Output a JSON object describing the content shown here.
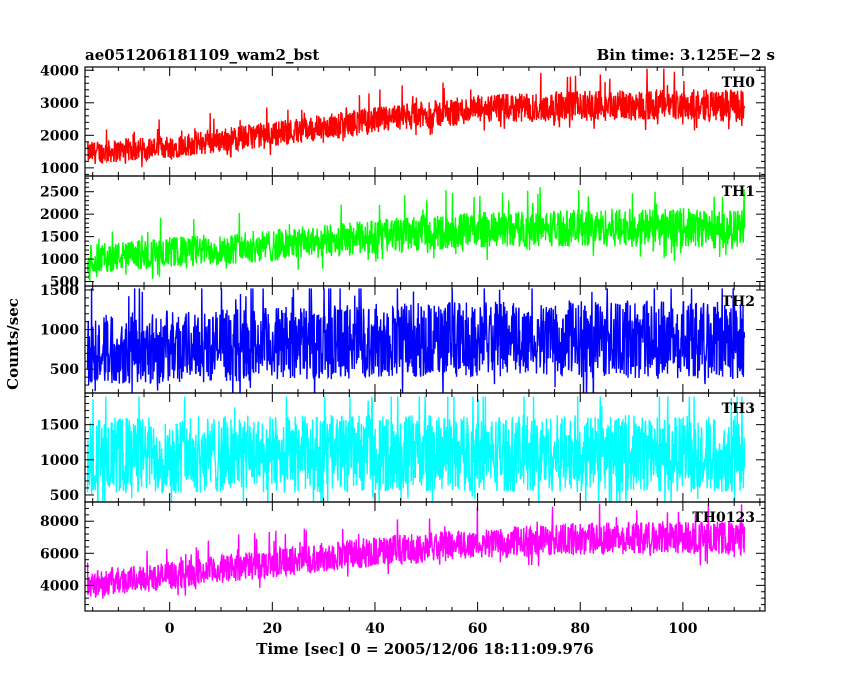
{
  "header": {
    "left_title": "ae051206181109_wam2_bst",
    "right_title": "Bin time: 3.125E−2 s"
  },
  "chart_data": {
    "type": "line",
    "xlabel": "Time [sec] 0 = 2005/12/06 18:11:09.976",
    "ylabel": "Counts/sec",
    "xlim": [
      -16.5,
      116
    ],
    "x_data_range": [
      -16,
      112
    ],
    "xticks": [
      0,
      20,
      40,
      60,
      80,
      100
    ],
    "panels": [
      {
        "name": "TH0",
        "color": "#ff0000",
        "ylim": [
          750,
          4100
        ],
        "yticks": [
          1000,
          2000,
          3000,
          4000
        ],
        "trend": [
          [
            -16,
            1450
          ],
          [
            0,
            1650
          ],
          [
            20,
            2050
          ],
          [
            40,
            2450
          ],
          [
            60,
            2800
          ],
          [
            80,
            2900
          ],
          [
            100,
            2950
          ],
          [
            112,
            2900
          ]
        ],
        "spread": [
          700,
          1000
        ],
        "spike_max": 4050
      },
      {
        "name": "TH1",
        "color": "#00ff00",
        "ylim": [
          400,
          2850
        ],
        "yticks": [
          500,
          1000,
          1500,
          2000,
          2500
        ],
        "trend": [
          [
            -16,
            1000
          ],
          [
            0,
            1150
          ],
          [
            20,
            1300
          ],
          [
            40,
            1500
          ],
          [
            60,
            1650
          ],
          [
            80,
            1700
          ],
          [
            100,
            1700
          ],
          [
            112,
            1650
          ]
        ],
        "spread": [
          650,
          900
        ],
        "spike_max": 2800
      },
      {
        "name": "TH2",
        "color": "#0000ff",
        "ylim": [
          200,
          1550
        ],
        "yticks": [
          500,
          1000,
          1500
        ],
        "trend": [
          [
            -16,
            750
          ],
          [
            0,
            780
          ],
          [
            20,
            820
          ],
          [
            40,
            860
          ],
          [
            60,
            880
          ],
          [
            80,
            880
          ],
          [
            100,
            870
          ],
          [
            112,
            850
          ]
        ],
        "spread": [
          900,
          1000
        ],
        "spike_max": 1520
      },
      {
        "name": "TH3",
        "color": "#00ffff",
        "ylim": [
          400,
          1950
        ],
        "yticks": [
          500,
          1000,
          1500
        ],
        "trend": [
          [
            -16,
            1050
          ],
          [
            0,
            1070
          ],
          [
            20,
            1080
          ],
          [
            40,
            1090
          ],
          [
            60,
            1090
          ],
          [
            80,
            1090
          ],
          [
            100,
            1090
          ],
          [
            112,
            1080
          ]
        ],
        "spread": [
          1100,
          1100
        ],
        "spike_max": 1900
      },
      {
        "name": "TH0123",
        "color": "#ff00ff",
        "ylim": [
          2400,
          9200
        ],
        "yticks": [
          4000,
          6000,
          8000
        ],
        "trend": [
          [
            -16,
            4100
          ],
          [
            0,
            4600
          ],
          [
            20,
            5400
          ],
          [
            40,
            6100
          ],
          [
            60,
            6600
          ],
          [
            80,
            6900
          ],
          [
            100,
            7000
          ],
          [
            112,
            6900
          ]
        ],
        "spread": [
          1700,
          2100
        ],
        "spike_max": 9100
      }
    ]
  }
}
